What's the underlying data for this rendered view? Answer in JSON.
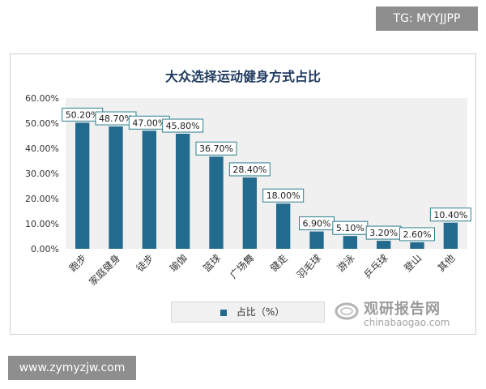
{
  "overlay": {
    "top_tag": "TG: MYYJJPP",
    "bottom_tag": "www.zymyzjw.com"
  },
  "watermark": {
    "name": "观研报告网",
    "url": "chinabaogao.com"
  },
  "chart_data": {
    "type": "bar",
    "title": "大众选择运动健身方式占比",
    "categories": [
      "跑步",
      "家庭健身",
      "徒步",
      "瑜伽",
      "篮球",
      "广场舞",
      "健走",
      "羽毛球",
      "游泳",
      "乒乓球",
      "登山",
      "其他"
    ],
    "series": [
      {
        "name": "占比（%）",
        "values": [
          50.2,
          48.7,
          47.0,
          45.8,
          36.7,
          28.4,
          18.0,
          6.9,
          5.1,
          3.2,
          2.6,
          10.4
        ]
      }
    ],
    "data_labels": [
      "50.20%",
      "48.70%",
      "47.00%",
      "45.80%",
      "36.70%",
      "28.40%",
      "18.00%",
      "6.90%",
      "5.10%",
      "3.20%",
      "2.60%",
      "10.40%"
    ],
    "yticks": [
      "0.00%",
      "10.00%",
      "20.00%",
      "30.00%",
      "40.00%",
      "50.00%",
      "60.00%"
    ],
    "ylim": [
      0,
      60
    ],
    "xlabel": "",
    "ylabel": "",
    "grid": false,
    "legend_position": "bottom",
    "colors": {
      "bar": "#236b8e",
      "label_border": "#2e7f8f",
      "plot_area": "#f0f0f0"
    }
  }
}
